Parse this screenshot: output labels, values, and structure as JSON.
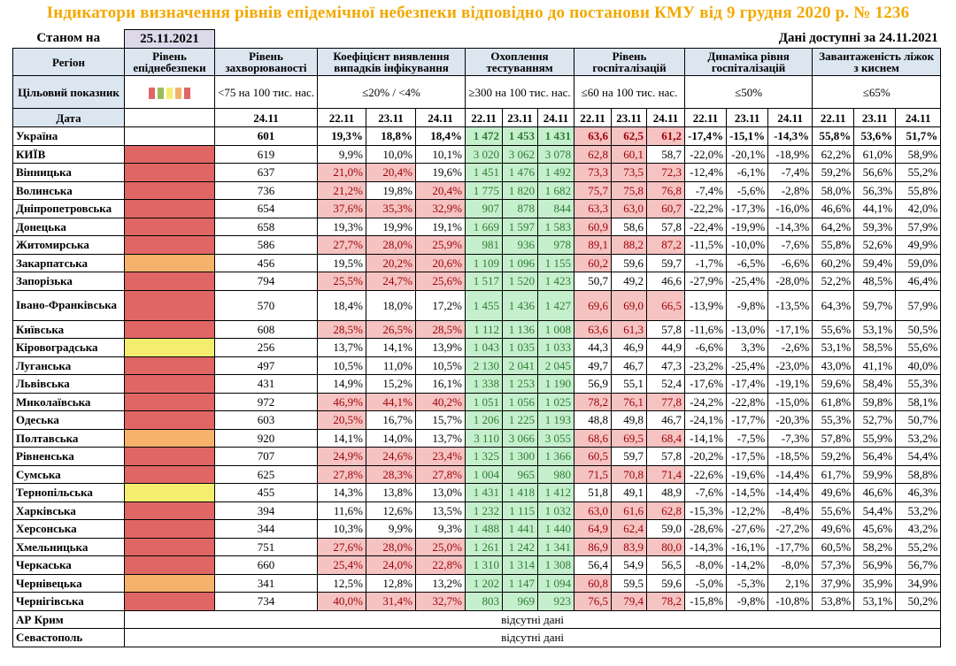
{
  "title": "Індикатори визначення рівнів епідемічної небезпеки відповідно до постанови КМУ від 9 грудня 2020 р. № 1236",
  "as_of_label": "Станом на",
  "as_of_date": "25.11.2021",
  "data_available": "Дані доступні за  24.11.2021",
  "headers": {
    "region": "Регіон",
    "level": "Рівень епіднебезпеки",
    "incidence": "Рівень захворюваності",
    "detection": "Коефіцієнт виявлення випадків інфікування",
    "testing": "Охоплення тестуванням",
    "hospital": "Рівень госпіталізацій",
    "dynamics": "Динаміка рівня госпіталізацій",
    "oxygen": "Завантаженість ліжок з киснем"
  },
  "target_row": {
    "label": "Цільовий показник",
    "incidence": "<75 на 100 тис. нас.",
    "detection": "≤20% / <4%",
    "testing": "≥300 на 100 тис. нас.",
    "hospital": "≤60 на 100 тис. нас.",
    "dynamics": "≤50%",
    "oxygen": "≤65%",
    "legend_colors": [
      "#e06666",
      "#9bbb59",
      "#f4ed6e",
      "#f6b26b",
      "#e06666"
    ]
  },
  "date_row": {
    "label": "Дата",
    "incidence": "24.11",
    "triple": [
      "22.11",
      "23.11",
      "24.11"
    ]
  },
  "level_colors": {
    "red": "#e06666",
    "orange": "#f6b26b",
    "yellow": "#f4ed6e"
  },
  "rows": [
    {
      "region": "Україна",
      "level": "",
      "inc": "601",
      "det": [
        "19,3%",
        "18,8%",
        "18,4%"
      ],
      "tst": [
        "1 472",
        "1 453",
        "1 431"
      ],
      "hos": [
        "63,6",
        "62,5",
        "61,2"
      ],
      "dyn": [
        "-17,4%",
        "-15,1%",
        "-14,3%"
      ],
      "oxy": [
        "55,8%",
        "53,6%",
        "51,7%"
      ],
      "det_hl": [
        0,
        0,
        0
      ],
      "tst_hl": [
        1,
        1,
        1
      ],
      "hos_hl": [
        1,
        1,
        1
      ],
      "bold": true
    },
    {
      "region": "КИЇВ",
      "level": "red",
      "inc": "619",
      "det": [
        "9,9%",
        "10,0%",
        "10,1%"
      ],
      "tst": [
        "3 020",
        "3 062",
        "3 078"
      ],
      "hos": [
        "62,8",
        "60,1",
        "58,7"
      ],
      "dyn": [
        "-22,0%",
        "-20,1%",
        "-18,9%"
      ],
      "oxy": [
        "62,2%",
        "61,0%",
        "58,9%"
      ],
      "det_hl": [
        0,
        0,
        0
      ],
      "tst_hl": [
        1,
        1,
        1
      ],
      "hos_hl": [
        1,
        1,
        0
      ]
    },
    {
      "region": "Вінницька",
      "level": "red",
      "inc": "637",
      "det": [
        "21,0%",
        "20,4%",
        "19,6%"
      ],
      "tst": [
        "1 451",
        "1 476",
        "1 492"
      ],
      "hos": [
        "73,3",
        "73,5",
        "72,3"
      ],
      "dyn": [
        "-12,4%",
        "-6,1%",
        "-7,4%"
      ],
      "oxy": [
        "59,2%",
        "56,6%",
        "55,2%"
      ],
      "det_hl": [
        1,
        1,
        0
      ],
      "tst_hl": [
        1,
        1,
        1
      ],
      "hos_hl": [
        1,
        1,
        1
      ]
    },
    {
      "region": "Волинська",
      "level": "red",
      "inc": "736",
      "det": [
        "21,2%",
        "19,8%",
        "20,4%"
      ],
      "tst": [
        "1 775",
        "1 820",
        "1 682"
      ],
      "hos": [
        "75,7",
        "75,8",
        "76,8"
      ],
      "dyn": [
        "-7,4%",
        "-5,6%",
        "-2,8%"
      ],
      "oxy": [
        "58,0%",
        "56,3%",
        "55,8%"
      ],
      "det_hl": [
        1,
        0,
        1
      ],
      "tst_hl": [
        1,
        1,
        1
      ],
      "hos_hl": [
        1,
        1,
        1
      ]
    },
    {
      "region": "Дніпропетровська",
      "level": "red",
      "inc": "654",
      "det": [
        "37,6%",
        "35,3%",
        "32,9%"
      ],
      "tst": [
        "907",
        "878",
        "844"
      ],
      "hos": [
        "63,3",
        "63,0",
        "60,7"
      ],
      "dyn": [
        "-22,2%",
        "-17,3%",
        "-16,0%"
      ],
      "oxy": [
        "46,6%",
        "44,1%",
        "42,0%"
      ],
      "det_hl": [
        1,
        1,
        1
      ],
      "tst_hl": [
        1,
        1,
        1
      ],
      "hos_hl": [
        1,
        1,
        1
      ]
    },
    {
      "region": "Донецька",
      "level": "red",
      "inc": "658",
      "det": [
        "19,3%",
        "19,9%",
        "19,1%"
      ],
      "tst": [
        "1 669",
        "1 597",
        "1 583"
      ],
      "hos": [
        "60,9",
        "58,6",
        "57,8"
      ],
      "dyn": [
        "-22,4%",
        "-19,9%",
        "-14,3%"
      ],
      "oxy": [
        "64,2%",
        "59,3%",
        "57,9%"
      ],
      "det_hl": [
        0,
        0,
        0
      ],
      "tst_hl": [
        1,
        1,
        1
      ],
      "hos_hl": [
        1,
        0,
        0
      ]
    },
    {
      "region": "Житомирська",
      "level": "red",
      "inc": "586",
      "det": [
        "27,7%",
        "28,0%",
        "25,9%"
      ],
      "tst": [
        "981",
        "936",
        "978"
      ],
      "hos": [
        "89,1",
        "88,2",
        "87,2"
      ],
      "dyn": [
        "-11,5%",
        "-10,0%",
        "-7,6%"
      ],
      "oxy": [
        "55,8%",
        "52,6%",
        "49,9%"
      ],
      "det_hl": [
        1,
        1,
        1
      ],
      "tst_hl": [
        1,
        1,
        1
      ],
      "hos_hl": [
        1,
        1,
        1
      ]
    },
    {
      "region": "Закарпатська",
      "level": "orange",
      "inc": "456",
      "det": [
        "19,5%",
        "20,2%",
        "20,6%"
      ],
      "tst": [
        "1 109",
        "1 096",
        "1 155"
      ],
      "hos": [
        "60,2",
        "59,6",
        "59,7"
      ],
      "dyn": [
        "-1,7%",
        "-6,5%",
        "-6,6%"
      ],
      "oxy": [
        "60,2%",
        "59,4%",
        "59,0%"
      ],
      "det_hl": [
        0,
        1,
        1
      ],
      "tst_hl": [
        1,
        1,
        1
      ],
      "hos_hl": [
        1,
        0,
        0
      ]
    },
    {
      "region": "Запорізька",
      "level": "red",
      "inc": "794",
      "det": [
        "25,5%",
        "24,7%",
        "25,6%"
      ],
      "tst": [
        "1 517",
        "1 520",
        "1 423"
      ],
      "hos": [
        "50,7",
        "49,2",
        "46,6"
      ],
      "dyn": [
        "-27,9%",
        "-25,4%",
        "-28,0%"
      ],
      "oxy": [
        "52,2%",
        "48,5%",
        "46,4%"
      ],
      "det_hl": [
        1,
        1,
        1
      ],
      "tst_hl": [
        1,
        1,
        1
      ],
      "hos_hl": [
        0,
        0,
        0
      ]
    },
    {
      "region": "Івано-Франківська",
      "level": "red",
      "inc": "570",
      "det": [
        "18,4%",
        "18,0%",
        "17,2%"
      ],
      "tst": [
        "1 455",
        "1 436",
        "1 427"
      ],
      "hos": [
        "69,6",
        "69,0",
        "66,5"
      ],
      "dyn": [
        "-13,9%",
        "-9,8%",
        "-13,5%"
      ],
      "oxy": [
        "64,3%",
        "59,7%",
        "57,9%"
      ],
      "det_hl": [
        0,
        0,
        0
      ],
      "tst_hl": [
        1,
        1,
        1
      ],
      "hos_hl": [
        1,
        1,
        1
      ],
      "tall": true
    },
    {
      "region": "Київська",
      "level": "red",
      "inc": "608",
      "det": [
        "28,5%",
        "26,5%",
        "28,5%"
      ],
      "tst": [
        "1 112",
        "1 136",
        "1 008"
      ],
      "hos": [
        "63,6",
        "61,3",
        "57,8"
      ],
      "dyn": [
        "-11,6%",
        "-13,0%",
        "-17,1%"
      ],
      "oxy": [
        "55,6%",
        "53,1%",
        "50,5%"
      ],
      "det_hl": [
        1,
        1,
        1
      ],
      "tst_hl": [
        1,
        1,
        1
      ],
      "hos_hl": [
        1,
        1,
        0
      ]
    },
    {
      "region": "Кіровоградська",
      "level": "yellow",
      "inc": "256",
      "det": [
        "13,7%",
        "14,1%",
        "13,9%"
      ],
      "tst": [
        "1 043",
        "1 035",
        "1 033"
      ],
      "hos": [
        "44,3",
        "46,9",
        "44,9"
      ],
      "dyn": [
        "-6,6%",
        "3,3%",
        "-2,6%"
      ],
      "oxy": [
        "53,1%",
        "58,5%",
        "55,6%"
      ],
      "det_hl": [
        0,
        0,
        0
      ],
      "tst_hl": [
        1,
        1,
        1
      ],
      "hos_hl": [
        0,
        0,
        0
      ]
    },
    {
      "region": "Луганська",
      "level": "red",
      "inc": "497",
      "det": [
        "10,5%",
        "11,0%",
        "10,5%"
      ],
      "tst": [
        "2 130",
        "2 041",
        "2 045"
      ],
      "hos": [
        "49,7",
        "46,7",
        "47,3"
      ],
      "dyn": [
        "-23,2%",
        "-25,4%",
        "-23,0%"
      ],
      "oxy": [
        "43,0%",
        "41,1%",
        "40,0%"
      ],
      "det_hl": [
        0,
        0,
        0
      ],
      "tst_hl": [
        1,
        1,
        1
      ],
      "hos_hl": [
        0,
        0,
        0
      ]
    },
    {
      "region": "Львівська",
      "level": "red",
      "inc": "431",
      "det": [
        "14,9%",
        "15,2%",
        "16,1%"
      ],
      "tst": [
        "1 338",
        "1 253",
        "1 190"
      ],
      "hos": [
        "56,9",
        "55,1",
        "52,4"
      ],
      "dyn": [
        "-17,6%",
        "-17,4%",
        "-19,1%"
      ],
      "oxy": [
        "59,6%",
        "58,4%",
        "55,3%"
      ],
      "det_hl": [
        0,
        0,
        0
      ],
      "tst_hl": [
        1,
        1,
        1
      ],
      "hos_hl": [
        0,
        0,
        0
      ]
    },
    {
      "region": "Миколаївська",
      "level": "red",
      "inc": "972",
      "det": [
        "46,9%",
        "44,1%",
        "40,2%"
      ],
      "tst": [
        "1 051",
        "1 056",
        "1 025"
      ],
      "hos": [
        "78,2",
        "76,1",
        "77,8"
      ],
      "dyn": [
        "-24,2%",
        "-22,8%",
        "-15,0%"
      ],
      "oxy": [
        "61,8%",
        "59,8%",
        "58,1%"
      ],
      "det_hl": [
        1,
        1,
        1
      ],
      "tst_hl": [
        1,
        1,
        1
      ],
      "hos_hl": [
        1,
        1,
        1
      ]
    },
    {
      "region": "Одеська",
      "level": "red",
      "inc": "603",
      "det": [
        "20,5%",
        "16,7%",
        "15,7%"
      ],
      "tst": [
        "1 206",
        "1 225",
        "1 193"
      ],
      "hos": [
        "48,8",
        "49,8",
        "46,7"
      ],
      "dyn": [
        "-24,1%",
        "-17,7%",
        "-20,3%"
      ],
      "oxy": [
        "55,3%",
        "52,7%",
        "50,7%"
      ],
      "det_hl": [
        1,
        0,
        0
      ],
      "tst_hl": [
        1,
        1,
        1
      ],
      "hos_hl": [
        0,
        0,
        0
      ]
    },
    {
      "region": "Полтавська",
      "level": "orange",
      "inc": "920",
      "det": [
        "14,1%",
        "14,0%",
        "13,7%"
      ],
      "tst": [
        "3 110",
        "3 066",
        "3 055"
      ],
      "hos": [
        "68,6",
        "69,5",
        "68,4"
      ],
      "dyn": [
        "-14,1%",
        "-7,5%",
        "-7,3%"
      ],
      "oxy": [
        "57,8%",
        "55,9%",
        "53,2%"
      ],
      "det_hl": [
        0,
        0,
        0
      ],
      "tst_hl": [
        1,
        1,
        1
      ],
      "hos_hl": [
        1,
        1,
        1
      ]
    },
    {
      "region": "Рівненська",
      "level": "red",
      "inc": "707",
      "det": [
        "24,9%",
        "24,6%",
        "23,4%"
      ],
      "tst": [
        "1 325",
        "1 300",
        "1 366"
      ],
      "hos": [
        "60,5",
        "59,7",
        "57,8"
      ],
      "dyn": [
        "-20,2%",
        "-17,5%",
        "-18,5%"
      ],
      "oxy": [
        "59,2%",
        "56,4%",
        "54,4%"
      ],
      "det_hl": [
        1,
        1,
        1
      ],
      "tst_hl": [
        1,
        1,
        1
      ],
      "hos_hl": [
        1,
        0,
        0
      ]
    },
    {
      "region": "Сумська",
      "level": "red",
      "inc": "625",
      "det": [
        "27,8%",
        "28,3%",
        "27,8%"
      ],
      "tst": [
        "1 004",
        "965",
        "980"
      ],
      "hos": [
        "71,5",
        "70,8",
        "71,4"
      ],
      "dyn": [
        "-22,6%",
        "-19,6%",
        "-14,4%"
      ],
      "oxy": [
        "61,7%",
        "59,9%",
        "58,8%"
      ],
      "det_hl": [
        1,
        1,
        1
      ],
      "tst_hl": [
        1,
        1,
        1
      ],
      "hos_hl": [
        1,
        1,
        1
      ]
    },
    {
      "region": "Тернопільська",
      "level": "yellow",
      "inc": "455",
      "det": [
        "14,3%",
        "13,8%",
        "13,0%"
      ],
      "tst": [
        "1 431",
        "1 418",
        "1 412"
      ],
      "hos": [
        "51,8",
        "49,1",
        "48,9"
      ],
      "dyn": [
        "-7,6%",
        "-14,5%",
        "-14,4%"
      ],
      "oxy": [
        "49,6%",
        "46,6%",
        "46,3%"
      ],
      "det_hl": [
        0,
        0,
        0
      ],
      "tst_hl": [
        1,
        1,
        1
      ],
      "hos_hl": [
        0,
        0,
        0
      ]
    },
    {
      "region": "Харківська",
      "level": "red",
      "inc": "394",
      "det": [
        "11,6%",
        "12,6%",
        "13,5%"
      ],
      "tst": [
        "1 232",
        "1 115",
        "1 032"
      ],
      "hos": [
        "63,0",
        "61,6",
        "62,8"
      ],
      "dyn": [
        "-15,3%",
        "-12,2%",
        "-8,4%"
      ],
      "oxy": [
        "55,6%",
        "54,4%",
        "53,2%"
      ],
      "det_hl": [
        0,
        0,
        0
      ],
      "tst_hl": [
        1,
        1,
        1
      ],
      "hos_hl": [
        1,
        1,
        1
      ]
    },
    {
      "region": "Херсонська",
      "level": "red",
      "inc": "344",
      "det": [
        "10,3%",
        "9,9%",
        "9,3%"
      ],
      "tst": [
        "1 488",
        "1 441",
        "1 440"
      ],
      "hos": [
        "64,9",
        "62,4",
        "59,0"
      ],
      "dyn": [
        "-28,6%",
        "-27,6%",
        "-27,2%"
      ],
      "oxy": [
        "49,6%",
        "45,6%",
        "43,2%"
      ],
      "det_hl": [
        0,
        0,
        0
      ],
      "tst_hl": [
        1,
        1,
        1
      ],
      "hos_hl": [
        1,
        1,
        0
      ]
    },
    {
      "region": "Хмельницька",
      "level": "red",
      "inc": "751",
      "det": [
        "27,6%",
        "28,0%",
        "25,0%"
      ],
      "tst": [
        "1 261",
        "1 242",
        "1 341"
      ],
      "hos": [
        "86,9",
        "83,9",
        "80,0"
      ],
      "dyn": [
        "-14,3%",
        "-16,1%",
        "-17,7%"
      ],
      "oxy": [
        "60,5%",
        "58,2%",
        "55,2%"
      ],
      "det_hl": [
        1,
        1,
        1
      ],
      "tst_hl": [
        1,
        1,
        1
      ],
      "hos_hl": [
        1,
        1,
        1
      ]
    },
    {
      "region": "Черкаська",
      "level": "red",
      "inc": "660",
      "det": [
        "25,4%",
        "24,0%",
        "22,8%"
      ],
      "tst": [
        "1 310",
        "1 314",
        "1 308"
      ],
      "hos": [
        "56,4",
        "54,9",
        "56,5"
      ],
      "dyn": [
        "-8,0%",
        "-14,2%",
        "-8,0%"
      ],
      "oxy": [
        "57,3%",
        "56,9%",
        "56,7%"
      ],
      "det_hl": [
        1,
        1,
        1
      ],
      "tst_hl": [
        1,
        1,
        1
      ],
      "hos_hl": [
        0,
        0,
        0
      ]
    },
    {
      "region": "Чернівецька",
      "level": "orange",
      "inc": "341",
      "det": [
        "12,5%",
        "12,8%",
        "13,2%"
      ],
      "tst": [
        "1 202",
        "1 147",
        "1 094"
      ],
      "hos": [
        "60,8",
        "59,5",
        "59,6"
      ],
      "dyn": [
        "-5,0%",
        "-5,3%",
        "2,1%"
      ],
      "oxy": [
        "37,9%",
        "35,9%",
        "34,9%"
      ],
      "det_hl": [
        0,
        0,
        0
      ],
      "tst_hl": [
        1,
        1,
        1
      ],
      "hos_hl": [
        1,
        0,
        0
      ]
    },
    {
      "region": "Чернігівська",
      "level": "red",
      "inc": "734",
      "det": [
        "40,0%",
        "31,4%",
        "32,7%"
      ],
      "tst": [
        "803",
        "969",
        "923"
      ],
      "hos": [
        "76,5",
        "79,4",
        "78,2"
      ],
      "dyn": [
        "-15,8%",
        "-9,8%",
        "-10,8%"
      ],
      "oxy": [
        "53,8%",
        "53,1%",
        "50,2%"
      ],
      "det_hl": [
        1,
        1,
        1
      ],
      "tst_hl": [
        1,
        1,
        1
      ],
      "hos_hl": [
        1,
        1,
        1
      ]
    }
  ],
  "missing_rows": [
    {
      "region": "АР Крим",
      "text": "відсутні дані"
    },
    {
      "region": "Севастополь",
      "text": "відсутні дані"
    }
  ]
}
